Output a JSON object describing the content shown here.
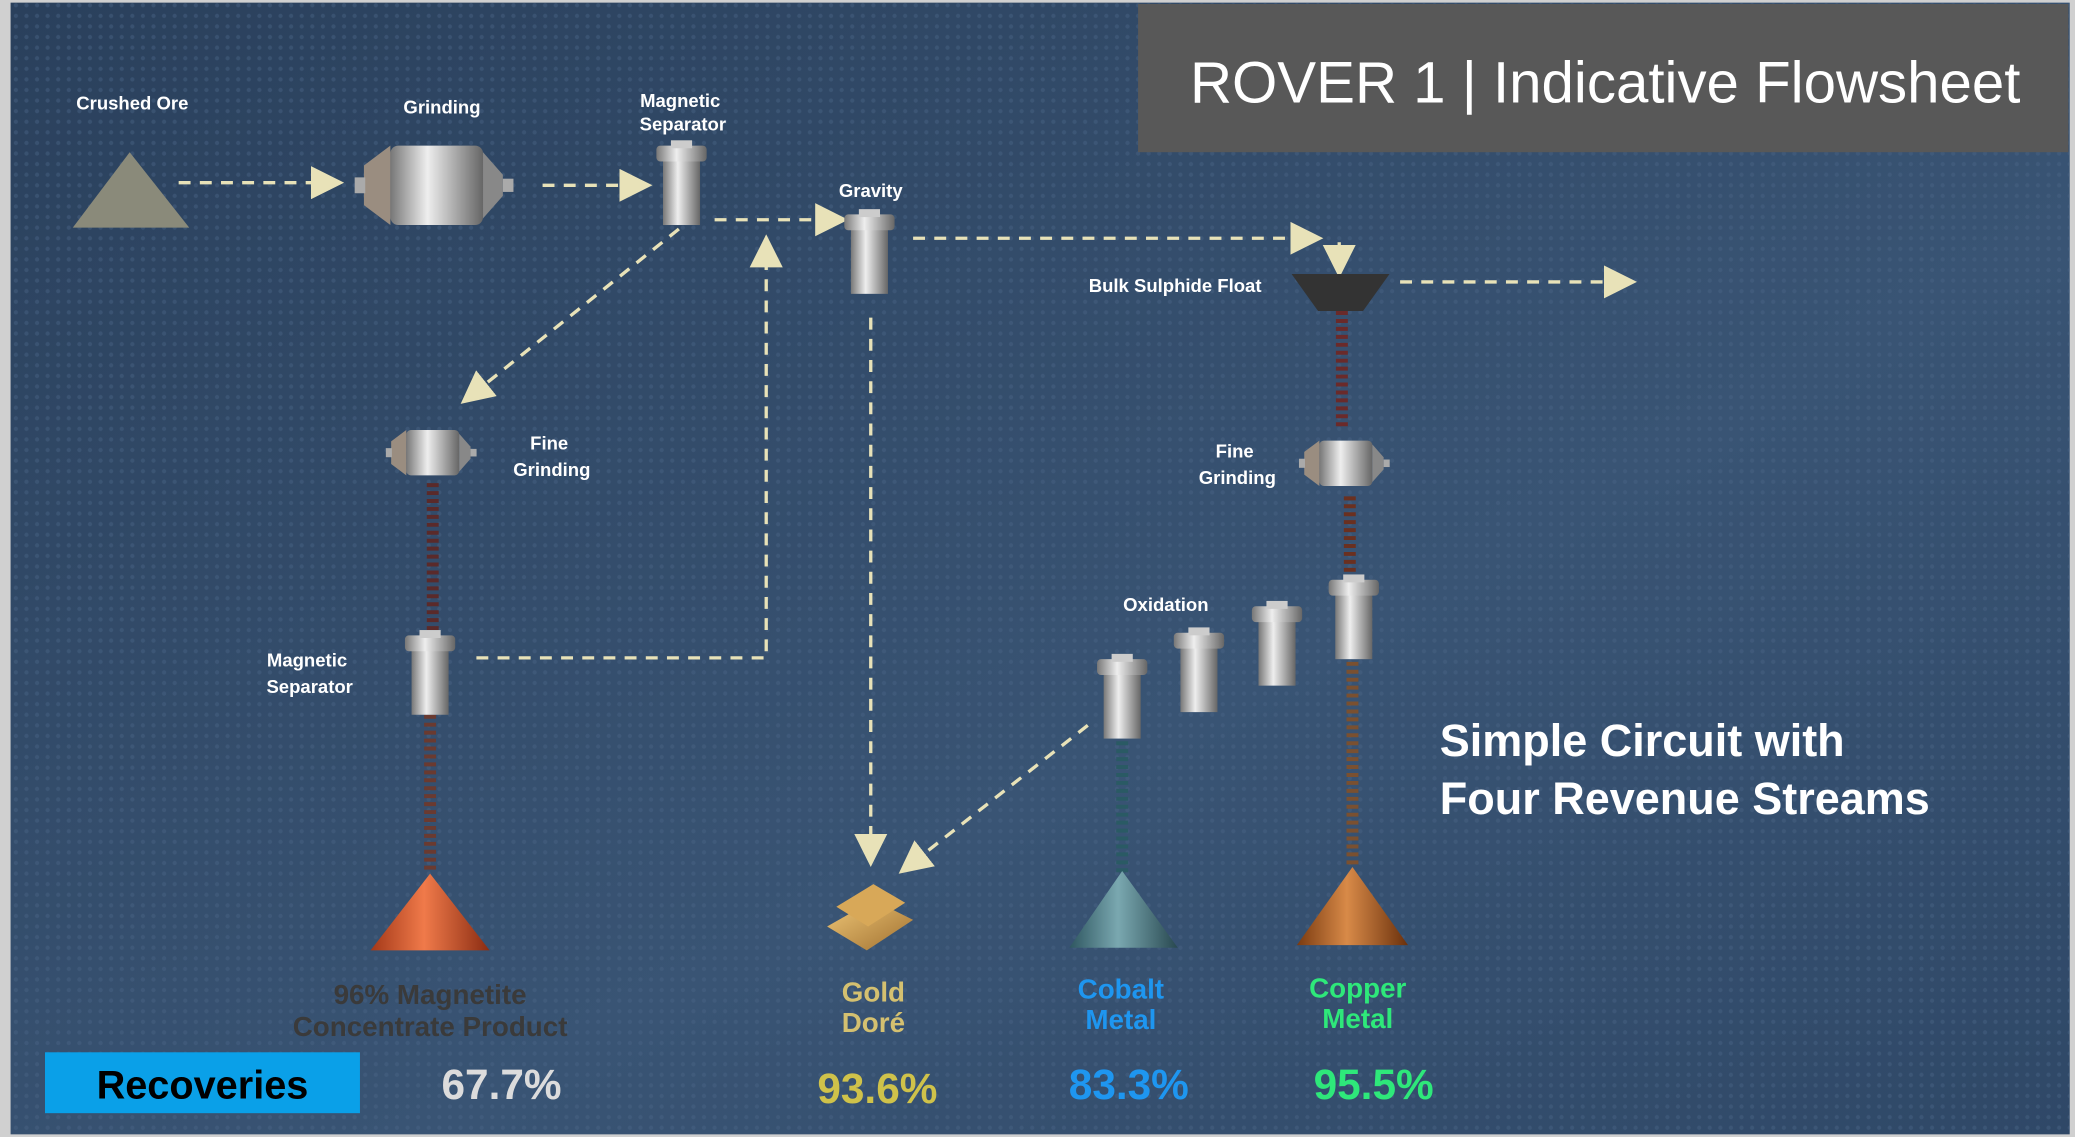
{
  "header": {
    "title": "ROVER 1 | Indicative Flowsheet"
  },
  "subtitle": [
    "Simple Circuit with",
    "Four Revenue Streams"
  ],
  "nodes": [
    {
      "label": [
        "Crushed Ore"
      ]
    },
    {
      "label": [
        "Grinding"
      ]
    },
    {
      "label": [
        "Magnetic",
        "Separator"
      ]
    },
    {
      "label": [
        "Gravity"
      ]
    },
    {
      "label": [
        "Bulk Sulphide Float"
      ]
    },
    {
      "label": [
        "Fine",
        "Grinding"
      ]
    },
    {
      "label": [
        "Fine",
        "Grinding"
      ]
    },
    {
      "label": [
        "Oxidation"
      ]
    },
    {
      "label": [
        "Magnetic",
        "Separator"
      ]
    }
  ],
  "products": [
    {
      "label": [
        "96% Magnetite",
        "Concentrate Product"
      ],
      "recovery": "67.7%"
    },
    {
      "label": [
        "Gold",
        "Doré"
      ],
      "recovery": "93.6%"
    },
    {
      "label": [
        "Cobalt",
        "Metal"
      ],
      "recovery": "83.3%"
    },
    {
      "label": [
        "Copper",
        "Metal"
      ],
      "recovery": "95.5%"
    }
  ],
  "recoveries_label": "Recoveries"
}
